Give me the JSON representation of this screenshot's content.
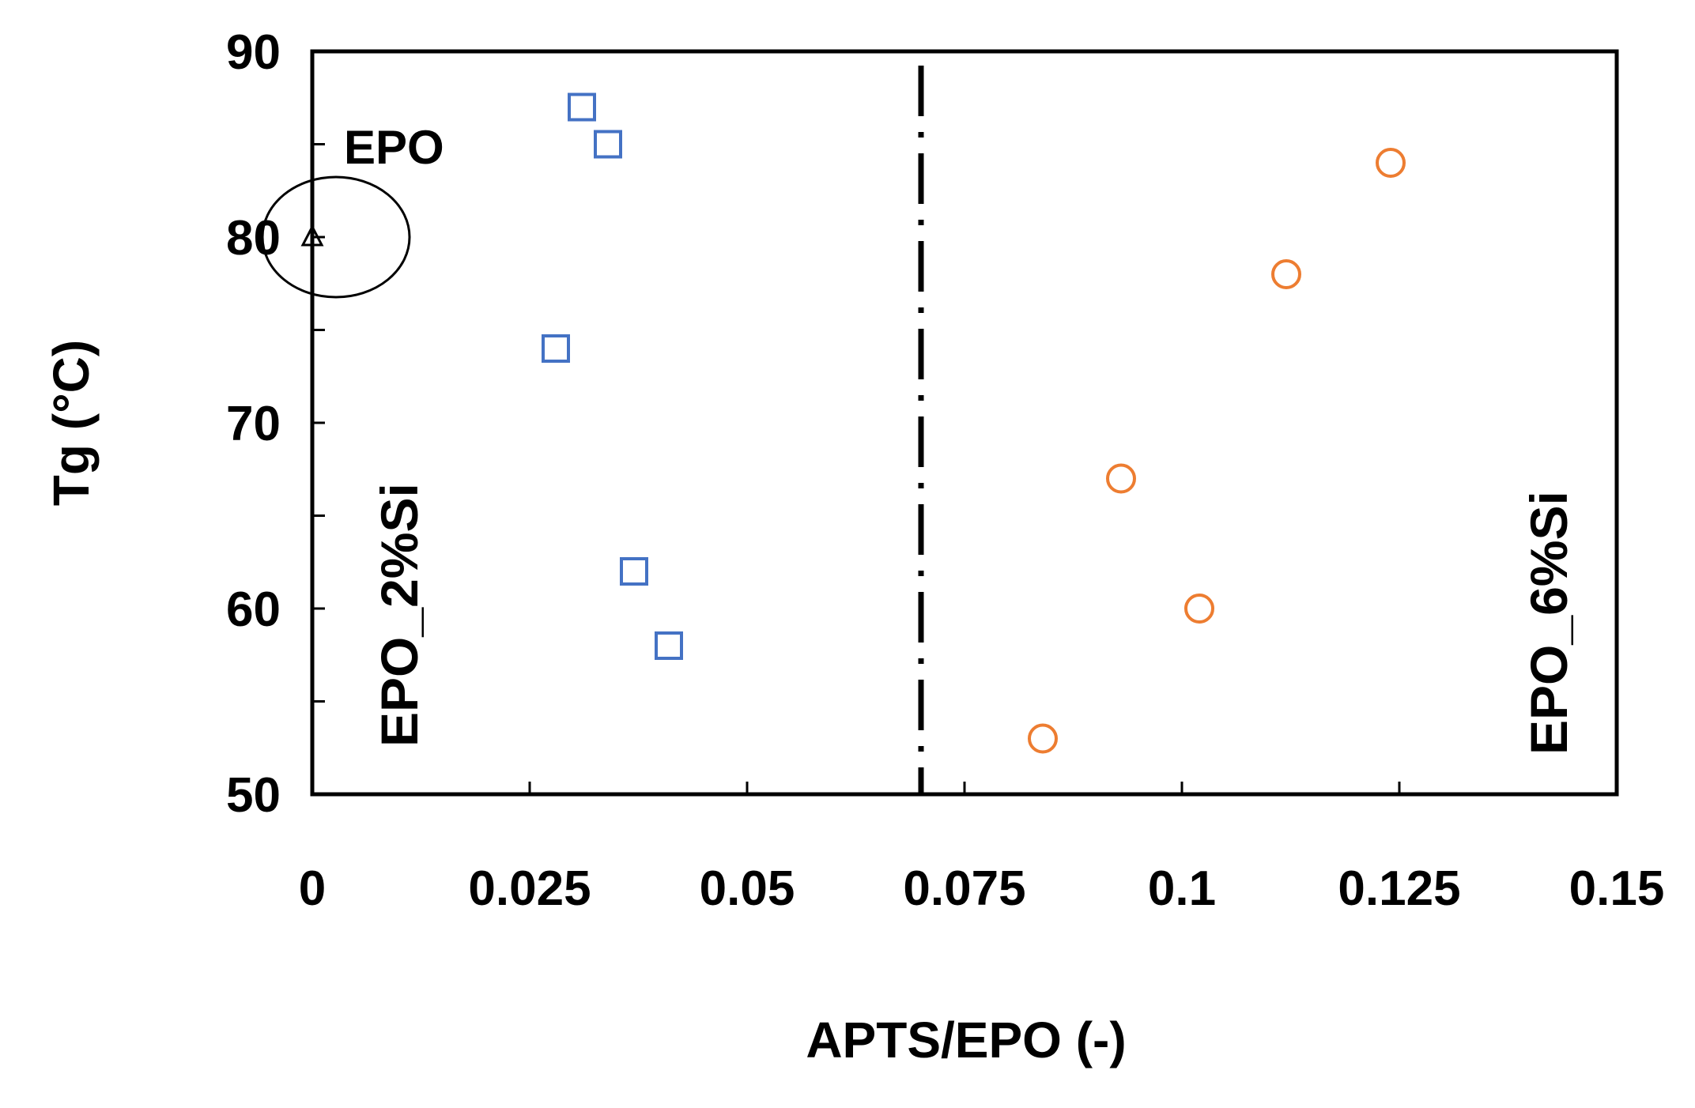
{
  "chart_data": {
    "type": "scatter",
    "xlabel": "APTS/EPO (-)",
    "ylabel": "Tg (°C)",
    "xlim": [
      0,
      0.15
    ],
    "ylim": [
      50,
      90
    ],
    "x_ticks": [
      "0",
      "0.025",
      "0.05",
      "0.075",
      "0.1",
      "0.125",
      "0.15"
    ],
    "y_ticks": [
      "50",
      "60",
      "70",
      "80",
      "90"
    ],
    "divider_x": 0.07,
    "series": [
      {
        "name": "EPO",
        "marker": "triangle",
        "color": "#000000",
        "points": [
          {
            "x": 0,
            "y": 80
          }
        ]
      },
      {
        "name": "EPO_2%Si",
        "marker": "square",
        "color": "#4472c4",
        "points": [
          {
            "x": 0.031,
            "y": 87
          },
          {
            "x": 0.034,
            "y": 85
          },
          {
            "x": 0.028,
            "y": 74
          },
          {
            "x": 0.037,
            "y": 62
          },
          {
            "x": 0.041,
            "y": 58
          }
        ]
      },
      {
        "name": "EPO_6%Si",
        "marker": "circle",
        "color": "#ed7d31",
        "points": [
          {
            "x": 0.124,
            "y": 84
          },
          {
            "x": 0.112,
            "y": 78
          },
          {
            "x": 0.093,
            "y": 67
          },
          {
            "x": 0.102,
            "y": 60
          },
          {
            "x": 0.084,
            "y": 53
          }
        ]
      }
    ],
    "annotations": {
      "epo_label": "EPO",
      "left_region_label": "EPO_2%Si",
      "right_region_label": "EPO_6%Si"
    }
  }
}
